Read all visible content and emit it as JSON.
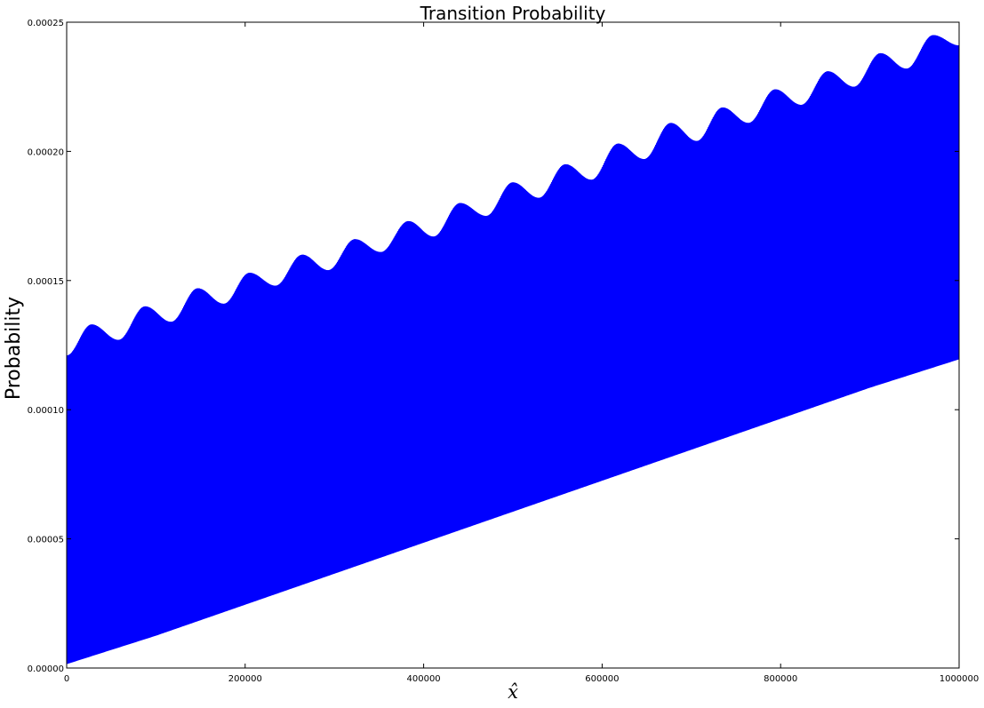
{
  "chart_data": {
    "type": "area",
    "title": "Transition Probability",
    "xlabel": "x̂",
    "ylabel": "Probability",
    "xlim": [
      0,
      1000000
    ],
    "ylim": [
      0,
      0.00025
    ],
    "x_ticks": [
      0,
      200000,
      400000,
      600000,
      800000,
      1000000
    ],
    "x_tick_labels": [
      "0",
      "200000",
      "400000",
      "600000",
      "800000",
      "1000000"
    ],
    "y_ticks": [
      0,
      5e-05,
      0.0001,
      0.00015,
      0.0002,
      0.00025
    ],
    "y_tick_labels": [
      "0.00000",
      "0.00005",
      "0.00010",
      "0.00015",
      "0.00020",
      "0.00025"
    ],
    "grid": false,
    "legend": "none",
    "series": [
      {
        "color": "#0000ff",
        "description_of_shape": "dense oscillating line filling a band",
        "lower_envelope": {
          "x": [
            0,
            100000,
            200000,
            300000,
            400000,
            500000,
            600000,
            700000,
            800000,
            900000,
            1000000
          ],
          "y": [
            1.5e-06,
            1.25e-05,
            2.45e-05,
            3.65e-05,
            4.85e-05,
            6.05e-05,
            7.25e-05,
            8.45e-05,
            9.65e-05,
            0.0001085,
            0.0001195
          ]
        },
        "upper_envelope_peaks": {
          "x": [
            28000,
            88000,
            147000,
            205000,
            264000,
            323000,
            383000,
            441000,
            500000,
            559000,
            618000,
            677000,
            735000,
            794000,
            853000,
            912000,
            971000
          ],
          "y": [
            0.000133,
            0.00014,
            0.000147,
            0.000153,
            0.00016,
            0.000166,
            0.000173,
            0.00018,
            0.000188,
            0.000195,
            0.000203,
            0.000211,
            0.000217,
            0.000224,
            0.000231,
            0.000238,
            0.000245
          ]
        },
        "upper_envelope_troughs": {
          "x": [
            0,
            58000,
            117000,
            176000,
            234000,
            293000,
            352000,
            411000,
            470000,
            529000,
            588000,
            647000,
            706000,
            764000,
            823000,
            882000,
            941000,
            1000000
          ],
          "y": [
            0.000121,
            0.000127,
            0.000134,
            0.000141,
            0.000148,
            0.000154,
            0.000161,
            0.000167,
            0.000175,
            0.000182,
            0.000189,
            0.000197,
            0.000204,
            0.000211,
            0.000218,
            0.000225,
            0.000232,
            0.000241
          ]
        }
      }
    ],
    "colors": {
      "series": "#0000ff",
      "axes": "#000000",
      "background": "#ffffff"
    }
  }
}
